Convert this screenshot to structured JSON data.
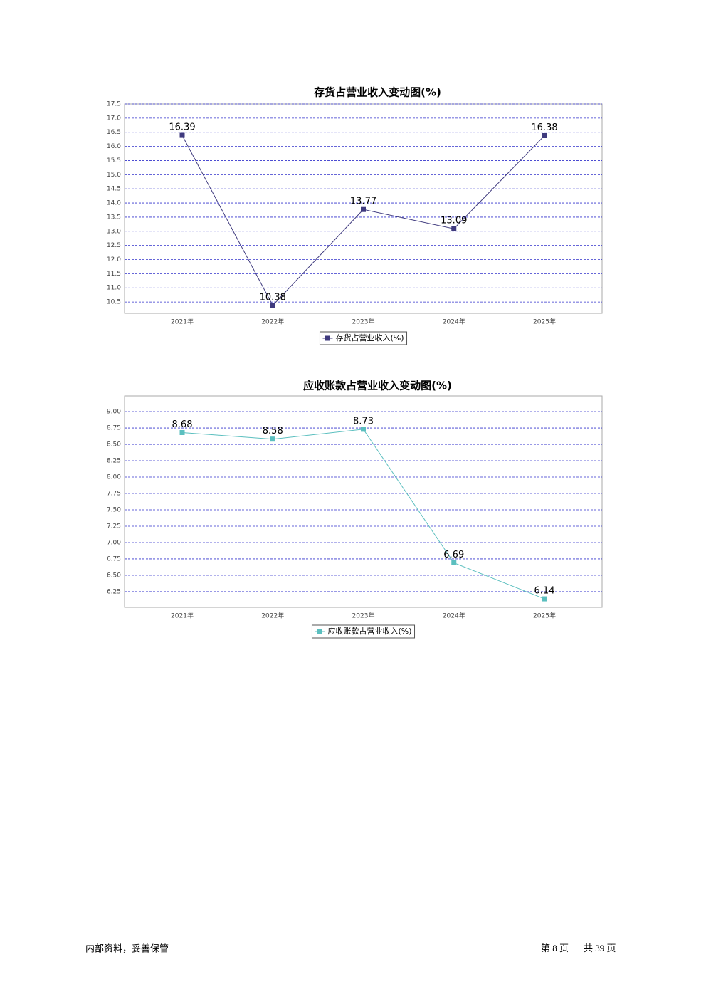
{
  "chart_data": [
    {
      "type": "line",
      "title": "存货占营业收入变动图(%)",
      "categories": [
        "2021年",
        "2022年",
        "2023年",
        "2024年",
        "2025年"
      ],
      "series": [
        {
          "name": "存货占营业收入(%)",
          "color": "#3f3a7e",
          "values": [
            16.39,
            10.38,
            13.77,
            13.09,
            16.38
          ]
        }
      ],
      "ylim": [
        10.1,
        17.5
      ],
      "yticks": [
        17.5,
        {
          "value": 17,
          "label": "17.0"
        },
        16.5,
        {
          "value": 16,
          "label": "16.0"
        },
        15.5,
        {
          "value": 15,
          "label": "15.0"
        },
        14.5,
        {
          "value": 14,
          "label": "14.0"
        },
        13.5,
        {
          "value": 13,
          "label": "13.0"
        },
        12.5,
        {
          "value": 12,
          "label": "12.0"
        },
        11.5,
        {
          "value": 11,
          "label": "11.0"
        },
        10.5
      ],
      "grid": true,
      "legend": "bottom"
    },
    {
      "type": "line",
      "title": "应收账款占营业收入变动图(%)",
      "categories": [
        "2021年",
        "2022年",
        "2023年",
        "2024年",
        "2025年"
      ],
      "series": [
        {
          "name": "应收账款占营业收入(%)",
          "color": "#5bbfbf",
          "values": [
            8.68,
            8.58,
            8.73,
            6.69,
            6.14
          ]
        }
      ],
      "ylim": [
        6.01,
        9.24
      ],
      "yticks": [
        {
          "value": 9,
          "label": "9.00"
        },
        8.75,
        {
          "value": 8.5,
          "label": "8.50"
        },
        8.25,
        {
          "value": 8,
          "label": "8.00"
        },
        7.75,
        {
          "value": 7.5,
          "label": "7.50"
        },
        7.25,
        {
          "value": 7,
          "label": "7.00"
        },
        6.75,
        {
          "value": 6.5,
          "label": "6.50"
        },
        6.25
      ],
      "grid": true,
      "legend": "bottom"
    }
  ],
  "footer": {
    "left": "内部资料，妥善保管",
    "page": "第 8 页",
    "total": "共 39 页"
  }
}
